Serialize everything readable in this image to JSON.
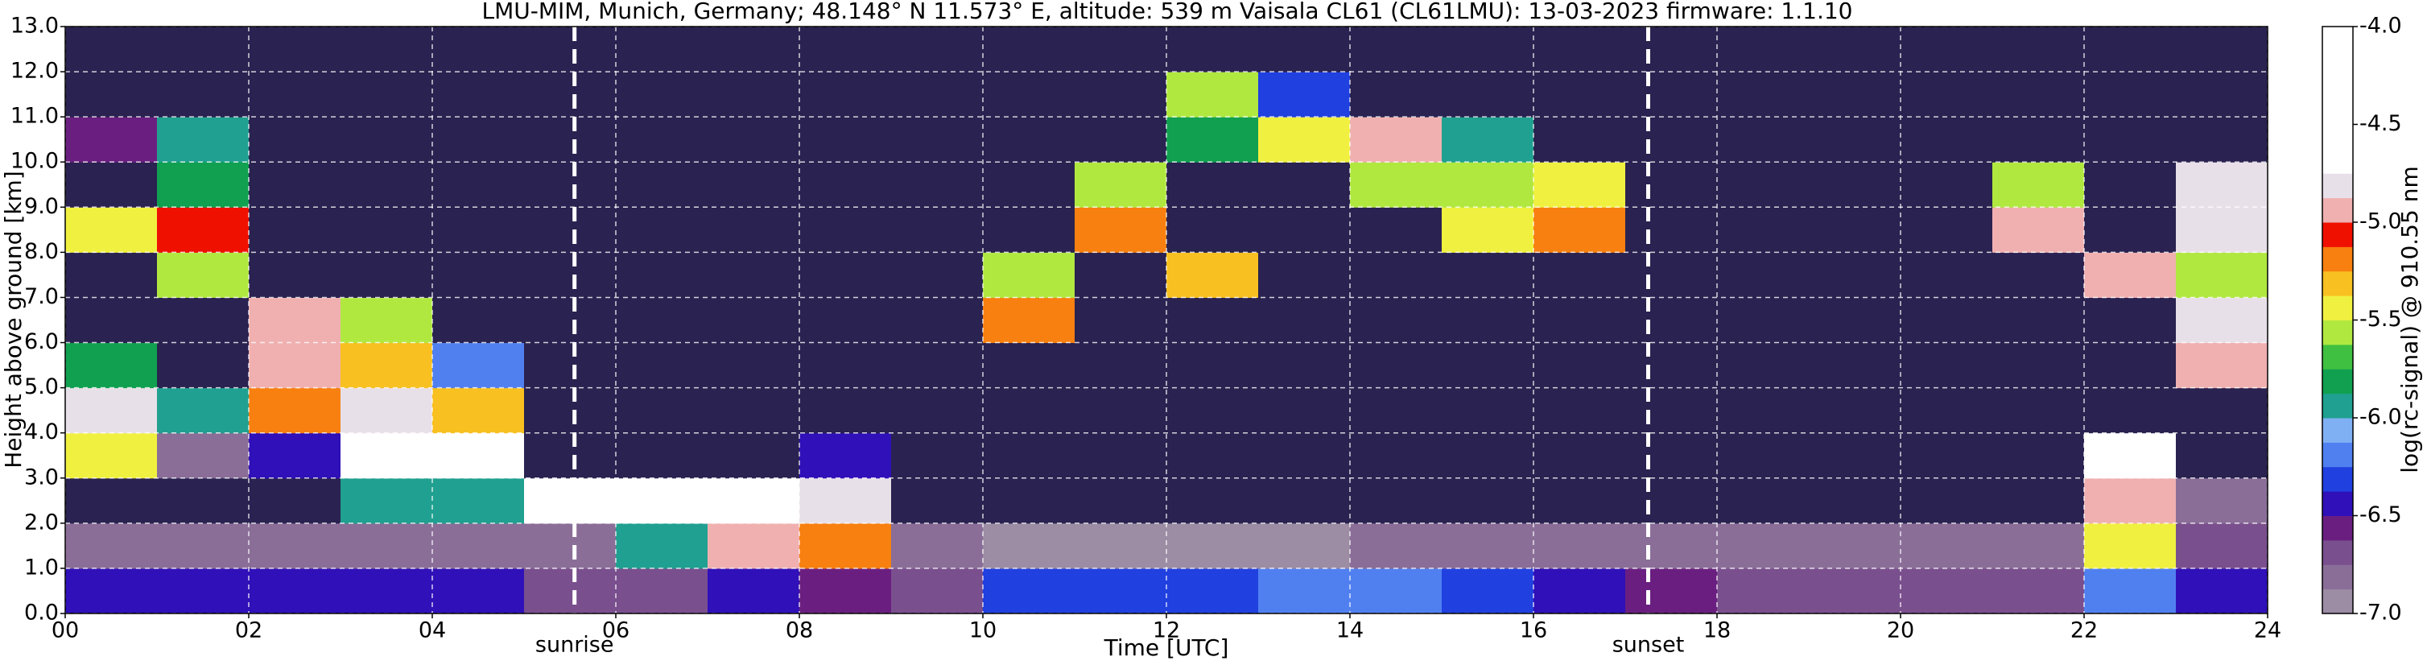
{
  "chart_data": {
    "type": "heatmap",
    "title": "LMU-MIM, Munich, Germany; 48.148° N 11.573° E, altitude: 539 m    Vaisala CL61 (CL61LMU): 13-03-2023    firmware: 1.1.10",
    "xlabel": "Time [UTC]",
    "ylabel": "Height above ground [km]",
    "colorbar_label": "log(rc-signal) @ 910.55 nm",
    "x_bins": [
      0,
      1,
      2,
      3,
      4,
      5,
      6,
      7,
      8,
      9,
      10,
      11,
      12,
      13,
      14,
      15,
      16,
      17,
      18,
      19,
      20,
      21,
      22,
      23,
      24
    ],
    "y_bins": [
      0,
      1,
      2,
      3,
      4,
      5,
      6,
      7,
      8,
      9,
      10,
      11,
      12,
      13
    ],
    "z": [
      [
        -6.4,
        -6.4,
        -6.4,
        -6.4,
        -6.4,
        -6.7,
        -6.7,
        -6.5,
        -6.6,
        -6.7,
        -6.3,
        -6.3,
        -6.3,
        -6.2,
        -6.2,
        -6.3,
        -6.4,
        -6.6,
        -6.7,
        -6.7,
        -6.7,
        -6.7,
        -6.2,
        -6.5
      ],
      [
        -6.8,
        -6.8,
        -6.8,
        -6.8,
        -6.8,
        -6.8,
        -6.0,
        -5.0,
        -5.2,
        -6.8,
        -6.9,
        -6.9,
        -6.9,
        -6.9,
        -6.8,
        -6.8,
        -6.8,
        -6.8,
        -6.8,
        -6.8,
        -6.8,
        -6.8,
        -5.5,
        -6.7
      ],
      [
        -7.2,
        -7.2,
        -7.2,
        -6.0,
        -6.0,
        -4.3,
        -4.5,
        -4.6,
        -4.8,
        -7.2,
        -7.2,
        -7.2,
        -7.2,
        -7.2,
        -7.2,
        -7.2,
        -7.2,
        -7.2,
        -7.2,
        -7.2,
        -7.2,
        -7.2,
        -5.0,
        -6.8
      ],
      [
        -5.5,
        -6.8,
        -6.5,
        -4.5,
        -4.6,
        -7.2,
        -7.2,
        -7.2,
        -6.5,
        -7.2,
        -7.2,
        -7.2,
        -7.2,
        -7.2,
        -7.2,
        -7.2,
        -7.2,
        -7.2,
        -7.2,
        -7.2,
        -7.2,
        -7.2,
        -4.6,
        -7.2
      ],
      [
        -4.8,
        -6.0,
        -5.2,
        -4.8,
        -5.3,
        -7.2,
        -7.2,
        -7.2,
        -7.2,
        -7.2,
        -7.2,
        -7.2,
        -7.2,
        -7.2,
        -7.2,
        -7.2,
        -7.2,
        -7.2,
        -7.2,
        -7.2,
        -7.2,
        -7.2,
        -7.2,
        -7.2
      ],
      [
        -5.8,
        -7.2,
        -5.0,
        -5.3,
        -6.2,
        -7.2,
        -7.2,
        -7.2,
        -7.2,
        -7.2,
        -7.2,
        -7.2,
        -7.2,
        -7.2,
        -7.2,
        -7.2,
        -7.2,
        -7.2,
        -7.2,
        -7.2,
        -7.2,
        -7.2,
        -7.2,
        -5.0
      ],
      [
        -7.2,
        -7.2,
        -5.0,
        -5.6,
        -7.2,
        -7.2,
        -7.2,
        -7.2,
        -7.2,
        -7.2,
        -5.2,
        -7.2,
        -7.2,
        -7.2,
        -7.2,
        -7.2,
        -7.2,
        -7.2,
        -7.2,
        -7.2,
        -7.2,
        -7.2,
        -7.2,
        -4.8
      ],
      [
        -7.2,
        -5.6,
        -7.2,
        -7.2,
        -7.2,
        -7.2,
        -7.2,
        -7.2,
        -7.2,
        -7.2,
        -5.6,
        -7.2,
        -5.3,
        -7.2,
        -7.2,
        -7.2,
        -7.2,
        -7.2,
        -7.2,
        -7.2,
        -7.2,
        -7.2,
        -5.0,
        -5.6
      ],
      [
        -5.5,
        -5.1,
        -7.2,
        -7.2,
        -7.2,
        -7.2,
        -7.2,
        -7.2,
        -7.2,
        -7.2,
        -7.2,
        -5.2,
        -7.2,
        -7.2,
        -7.2,
        -5.4,
        -5.2,
        -7.2,
        -7.2,
        -7.2,
        -7.2,
        -5.0,
        -7.2,
        -4.8
      ],
      [
        -7.2,
        -5.8,
        -7.2,
        -7.2,
        -7.2,
        -7.2,
        -7.2,
        -7.2,
        -7.2,
        -7.2,
        -7.2,
        -5.6,
        -7.2,
        -7.2,
        -5.6,
        -5.6,
        -5.5,
        -7.2,
        -7.2,
        -7.2,
        -7.2,
        -5.6,
        -7.2,
        -4.8
      ],
      [
        -6.6,
        -6.0,
        -7.2,
        -7.2,
        -7.2,
        -7.2,
        -7.2,
        -7.2,
        -7.2,
        -7.2,
        -7.2,
        -7.2,
        -5.8,
        -5.5,
        -4.9,
        -5.9,
        -7.2,
        -7.2,
        -7.2,
        -7.2,
        -7.2,
        -7.2,
        -7.2,
        -7.2
      ],
      [
        -7.2,
        -7.2,
        -7.2,
        -7.2,
        -7.2,
        -7.2,
        -7.2,
        -7.2,
        -7.2,
        -7.2,
        -7.2,
        -7.2,
        -5.6,
        -6.3,
        -7.2,
        -7.2,
        -7.2,
        -7.2,
        -7.2,
        -7.2,
        -7.2,
        -7.2,
        -7.2,
        -7.2
      ],
      [
        -7.2,
        -7.2,
        -7.2,
        -7.2,
        -7.2,
        -7.2,
        -7.2,
        -7.2,
        -7.2,
        -7.2,
        -7.2,
        -7.2,
        -7.2,
        -7.2,
        -7.2,
        -7.2,
        -7.2,
        -7.2,
        -7.2,
        -7.2,
        -7.2,
        -7.2,
        -7.2,
        -7.2
      ]
    ],
    "xlim": [
      0,
      24
    ],
    "ylim": [
      0,
      13
    ],
    "clim": [
      -7,
      -4
    ],
    "xticks": [
      {
        "value": 0,
        "label": "00"
      },
      {
        "value": 2,
        "label": "02"
      },
      {
        "value": 4,
        "label": "04"
      },
      {
        "value": 6,
        "label": "06"
      },
      {
        "value": 8,
        "label": "08"
      },
      {
        "value": 10,
        "label": "10"
      },
      {
        "value": 12,
        "label": "12"
      },
      {
        "value": 14,
        "label": "14"
      },
      {
        "value": 16,
        "label": "16"
      },
      {
        "value": 18,
        "label": "18"
      },
      {
        "value": 20,
        "label": "20"
      },
      {
        "value": 22,
        "label": "22"
      },
      {
        "value": 24,
        "label": "24"
      }
    ],
    "yticks": [
      {
        "value": 0,
        "label": "0.0"
      },
      {
        "value": 1,
        "label": "1.0"
      },
      {
        "value": 2,
        "label": "2.0"
      },
      {
        "value": 3,
        "label": "3.0"
      },
      {
        "value": 4,
        "label": "4.0"
      },
      {
        "value": 5,
        "label": "5.0"
      },
      {
        "value": 6,
        "label": "6.0"
      },
      {
        "value": 7,
        "label": "7.0"
      },
      {
        "value": 8,
        "label": "8.0"
      },
      {
        "value": 9,
        "label": "9.0"
      },
      {
        "value": 10,
        "label": "10.0"
      },
      {
        "value": 11,
        "label": "11.0"
      },
      {
        "value": 12,
        "label": "12.0"
      },
      {
        "value": 13,
        "label": "13.0"
      }
    ],
    "cticks": [
      {
        "value": -7,
        "label": "-7.0"
      },
      {
        "value": -6.5,
        "label": "-6.5"
      },
      {
        "value": -6,
        "label": "-6.0"
      },
      {
        "value": -5.5,
        "label": "-5.5"
      },
      {
        "value": -5,
        "label": "-5.0"
      },
      {
        "value": -4.5,
        "label": "-4.5"
      },
      {
        "value": -4,
        "label": "-4.0"
      }
    ],
    "colors": [
      "#9c8ca4",
      "#8a6e98",
      "#7a4f8e",
      "#6a1f80",
      "#3010b8",
      "#2040e0",
      "#5080f0",
      "#80b0f4",
      "#20a090",
      "#10a050",
      "#40c040",
      "#b0e840",
      "#f0f040",
      "#f8c020",
      "#f88010",
      "#f01000",
      "#f0b0b0",
      "#e8e0e8",
      "#ffffff",
      "#ffffff",
      "#ffffff",
      "#ffffff",
      "#ffffff",
      "#ffffff"
    ],
    "under_color": "#2a2250",
    "grid": true,
    "annotations": [
      {
        "text": "sunrise",
        "x": 5.55
      },
      {
        "text": "sunset",
        "x": 17.25
      }
    ]
  }
}
